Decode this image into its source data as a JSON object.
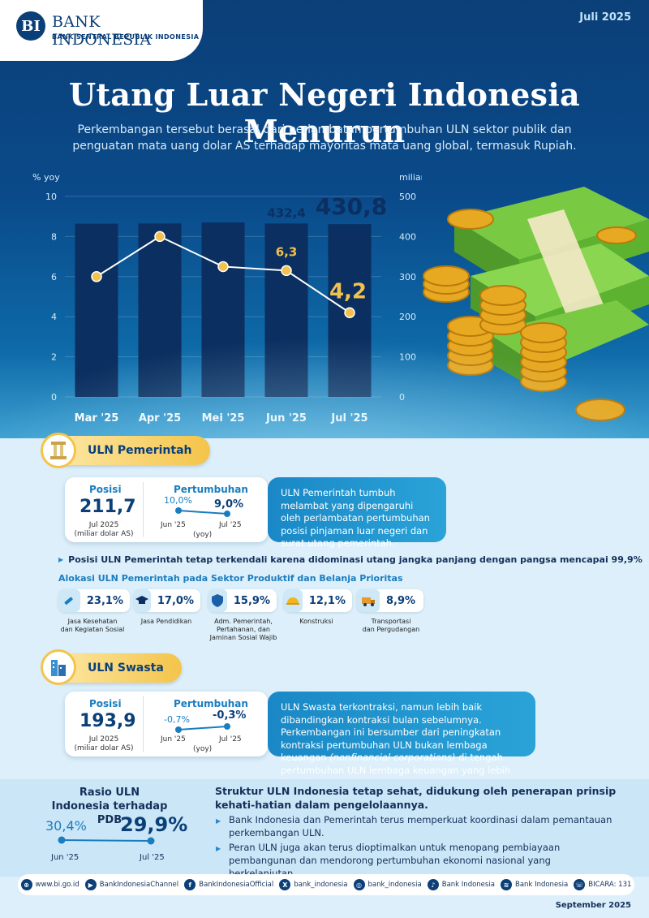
{
  "header": {
    "bank_name": "BANK INDONESIA",
    "bank_subtitle": "BANK SENTRAL REPUBLIK INDONESIA",
    "period": "Juli 2025",
    "logo_letter": "BI"
  },
  "title": "Utang Luar Negeri Indonesia Menurun",
  "subtitle": "Perkembangan tersebut berasal dari perlambatan pertumbuhan ULN sektor publik dan penguatan mata uang dolar AS terhadap mayoritas mata uang global, termasuk Rupiah.",
  "chart_data": {
    "type": "bar",
    "categories": [
      "Mar '25",
      "Apr '25",
      "Mei '25",
      "Jun '25",
      "Jul '25"
    ],
    "series": [
      {
        "name": "",
        "axis": "right",
        "kind": "bar",
        "values": [
          432.0,
          432.5,
          435.0,
          432.4,
          430.8
        ]
      },
      {
        "name": "",
        "axis": "left",
        "kind": "line",
        "values": [
          6.0,
          8.0,
          6.5,
          6.3,
          4.2
        ]
      }
    ],
    "ylabel_left": "% yoy",
    "ylabel_right": "miliar USD",
    "ylim_left": [
      0,
      10
    ],
    "ylim_right": [
      0,
      500
    ],
    "yticks_left": [
      "0",
      "2",
      "4",
      "6",
      "8",
      "10"
    ],
    "yticks_right": [
      "0",
      "100",
      "200",
      "300",
      "400",
      "500"
    ],
    "labels": {
      "bar_jun": "432,4",
      "bar_jul": "430,8",
      "line_jun": "6,3",
      "line_jul": "4,2"
    },
    "colors": {
      "bar": "#0b2f60",
      "line": "#ffffff",
      "marker": "#f2c14e",
      "label_gold": "#f2c14e",
      "label_dark": "#0b2f60"
    }
  },
  "pemerintah": {
    "tab_label": "ULN Pemerintah",
    "posisi_label": "Posisi",
    "posisi_value": "211,7",
    "posisi_note1": "Jul 2025",
    "posisi_note2": "(miliar dolar AS)",
    "growth_label": "Pertumbuhan",
    "growth_from": "10,0%",
    "growth_to": "9,0%",
    "growth_from_label": "Jun '25",
    "growth_to_label": "Jul '25",
    "growth_unit": "(yoy)",
    "desc": "ULN Pemerintah tumbuh melambat yang dipengaruhi oleh perlambatan pertumbuhan posisi pinjaman luar negeri dan surat utang pemerintah.",
    "note": "Posisi ULN Pemerintah tetap terkendali karena didominasi utang jangka panjang dengan pangsa mencapai 99,9%",
    "alloc_title": "Alokasi ULN Pemerintah pada Sektor Produktif dan Belanja Prioritas",
    "alloc": [
      {
        "value": "23,1%",
        "label1": "Jasa Kesehatan",
        "label2": "dan Kegiatan Sosial",
        "label3": "",
        "icon": "syringe-icon"
      },
      {
        "value": "17,0%",
        "label1": "Jasa Pendidikan",
        "label2": "",
        "label3": "",
        "icon": "graduation-cap-icon"
      },
      {
        "value": "15,9%",
        "label1": "Adm. Pemerintah,",
        "label2": "Pertahanan, dan",
        "label3": "Jaminan Sosial Wajib",
        "icon": "shield-icon"
      },
      {
        "value": "12,1%",
        "label1": "Konstruksi",
        "label2": "",
        "label3": "",
        "icon": "helmet-icon"
      },
      {
        "value": "8,9%",
        "label1": "Transportasi",
        "label2": "dan Pergudangan",
        "label3": "",
        "icon": "truck-icon"
      }
    ]
  },
  "swasta": {
    "tab_label": "ULN Swasta",
    "posisi_label": "Posisi",
    "posisi_value": "193,9",
    "posisi_note1": "Jul 2025",
    "posisi_note2": "(miliar dolar AS)",
    "growth_label": "Pertumbuhan",
    "growth_from": "-0,7%",
    "growth_to": "-0,3%",
    "growth_from_label": "Jun '25",
    "growth_to_label": "Jul '25",
    "growth_unit": "(yoy)",
    "desc_a": "ULN Swasta terkontraksi, namun lebih baik dibandingkan kontraksi bulan sebelumnya. Perkembangan ini bersumber dari peningkatan kontraksi pertumbuhan ULN bukan lembaga keuangan ",
    "desc_em": "(nonfinancial corporations)",
    "desc_b": " di tengah pertumbuhan ULN lembaga keuangan yang lebih tinggi."
  },
  "rasio": {
    "title": "Rasio ULN Indonesia terhadap PDB",
    "from_value": "30,4%",
    "to_value": "29,9%",
    "from_label": "Jun '25",
    "to_label": "Jul '25"
  },
  "struktur": {
    "headline": "Struktur ULN Indonesia tetap sehat, didukung oleh penerapan prinsip kehati-hatian dalam pengelolaannya.",
    "bullet1": "Bank Indonesia dan Pemerintah terus memperkuat koordinasi dalam pemantauan perkembangan ULN.",
    "bullet2": "Peran ULN juga akan terus dioptimalkan untuk menopang pembiayaan pembangunan dan mendorong pertumbuhan ekonomi nasional yang berkelanjutan."
  },
  "footer": {
    "items": [
      {
        "icon": "globe-icon",
        "text": "www.bi.go.id"
      },
      {
        "icon": "youtube-icon",
        "text": "BankIndonesiaChannel"
      },
      {
        "icon": "facebook-icon",
        "text": "BankIndonesiaOfficial"
      },
      {
        "icon": "x-icon",
        "text": "bank_indonesia"
      },
      {
        "icon": "instagram-icon",
        "text": "bank_indonesia"
      },
      {
        "icon": "tiktok-icon",
        "text": "Bank Indonesia"
      },
      {
        "icon": "spotify-icon",
        "text": "Bank Indonesia"
      },
      {
        "icon": "contact-center-icon",
        "text": "BICARA: 131"
      }
    ],
    "period": "September 2025"
  }
}
